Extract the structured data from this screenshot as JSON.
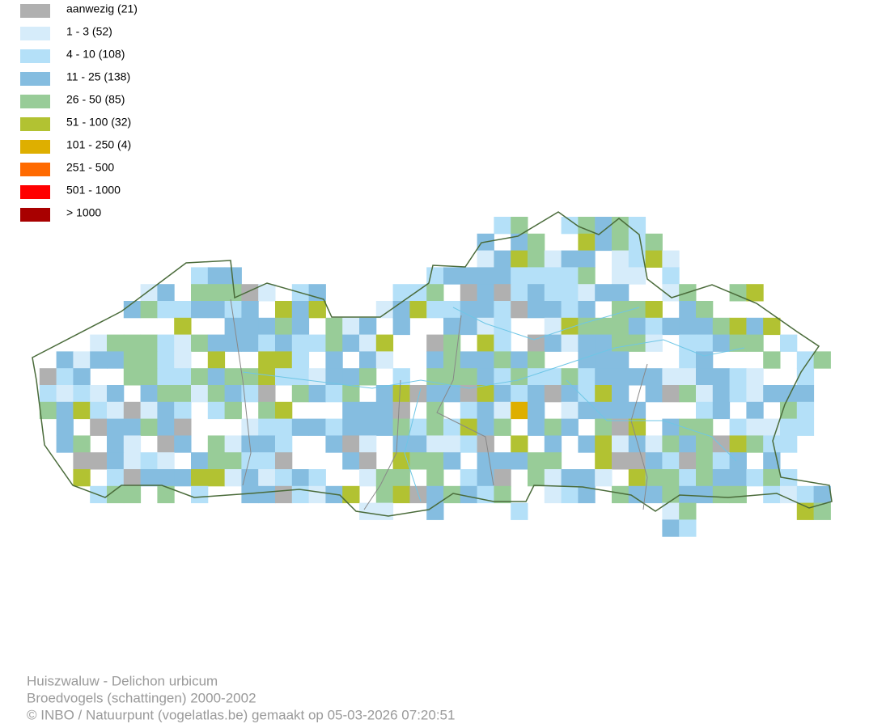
{
  "legend": [
    {
      "label": "aanwezig (21)",
      "color": "#b0b0b0"
    },
    {
      "label": "1 - 3 (52)",
      "color": "#d6ecfa"
    },
    {
      "label": "4 - 10 (108)",
      "color": "#b4e0f8"
    },
    {
      "label": "11 - 25 (138)",
      "color": "#85bde0"
    },
    {
      "label": "26 - 50 (85)",
      "color": "#98cc98"
    },
    {
      "label": "51 - 100 (32)",
      "color": "#b2c232"
    },
    {
      "label": "101 - 250 (4)",
      "color": "#deaf00"
    },
    {
      "label": "251 - 500",
      "color": "#ff6a00"
    },
    {
      "label": "501 - 1000",
      "color": "#ff0000"
    },
    {
      "label": "> 1000",
      "color": "#a80000"
    }
  ],
  "footer": [
    "Huiszwaluw - Delichon urbicum",
    "Broedvogels (schattingen) 2000-2002",
    "© INBO / Natuurpunt (vogelatlas.be) gemaakt op 05-03-2026 07:20:51"
  ]
}
